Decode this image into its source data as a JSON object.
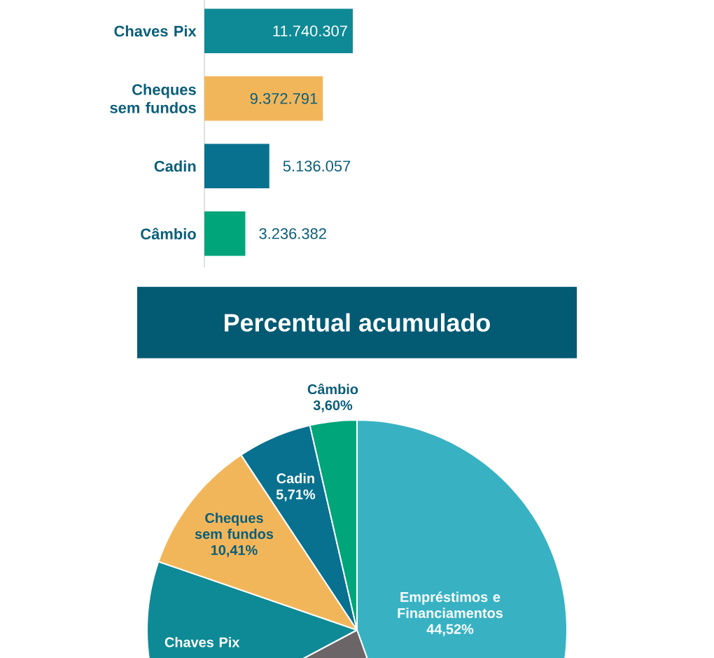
{
  "chart_data": [
    {
      "type": "bar",
      "orientation": "horizontal",
      "categories": [
        "Chaves Pix",
        "Cheques sem fundos",
        "Cadin",
        "Câmbio"
      ],
      "values": [
        11740307,
        9372791,
        5136057,
        3236382
      ],
      "colors": [
        "#0e8a96",
        "#f2b65a",
        "#08718f",
        "#00a57a"
      ],
      "value_labels": [
        "11.740.307",
        "9.372.791",
        "5.136.057",
        "3.236.382"
      ]
    },
    {
      "type": "pie",
      "title": "Percentual acumulado",
      "categories": [
        "Empréstimos e Financiamentos",
        null,
        "Chaves Pix",
        "Cheques sem fundos",
        "Cadin",
        "Câmbio"
      ],
      "values": [
        44.52,
        22.72,
        13.04,
        10.41,
        5.71,
        3.6
      ],
      "colors": [
        "#38b2c3",
        "#6b6567",
        "#0e8a96",
        "#f2b65a",
        "#08718f",
        "#00a57a"
      ],
      "value_labels": [
        "44,52%",
        null,
        null,
        "10,41%",
        "5,71%",
        "3,60%"
      ]
    }
  ]
}
